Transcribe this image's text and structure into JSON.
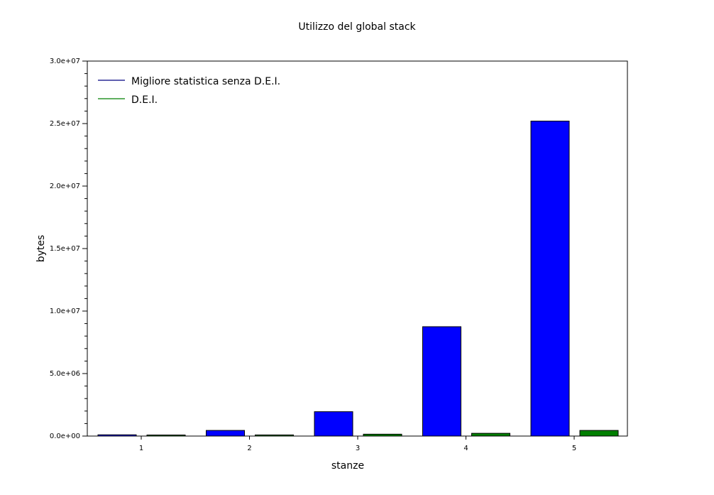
{
  "chart_data": {
    "type": "bar",
    "title": "Utilizzo del global stack",
    "xlabel": "stanze",
    "ylabel": "bytes",
    "categories": [
      "1",
      "2",
      "3",
      "4",
      "5"
    ],
    "ylim": [
      0,
      30000000
    ],
    "yticks": [
      {
        "value": 0,
        "label": "0.0e+00"
      },
      {
        "value": 5000000,
        "label": "5.0e+06"
      },
      {
        "value": 10000000,
        "label": "1.0e+07"
      },
      {
        "value": 15000000,
        "label": "1.5e+07"
      },
      {
        "value": 20000000,
        "label": "2.0e+07"
      },
      {
        "value": 25000000,
        "label": "2.5e+07"
      },
      {
        "value": 30000000,
        "label": "3.0e+07"
      }
    ],
    "series": [
      {
        "name": "Migliore statistica senza D.E.I.",
        "color": "#0000ff",
        "legend_color": "#000080",
        "values": [
          100000,
          450000,
          1950000,
          8750000,
          25200000
        ]
      },
      {
        "name": "D.E.I.",
        "color": "#007f00",
        "legend_color": "#008000",
        "values": [
          80000,
          90000,
          150000,
          220000,
          450000
        ]
      }
    ],
    "grid": false,
    "legend_position": "top-left"
  }
}
